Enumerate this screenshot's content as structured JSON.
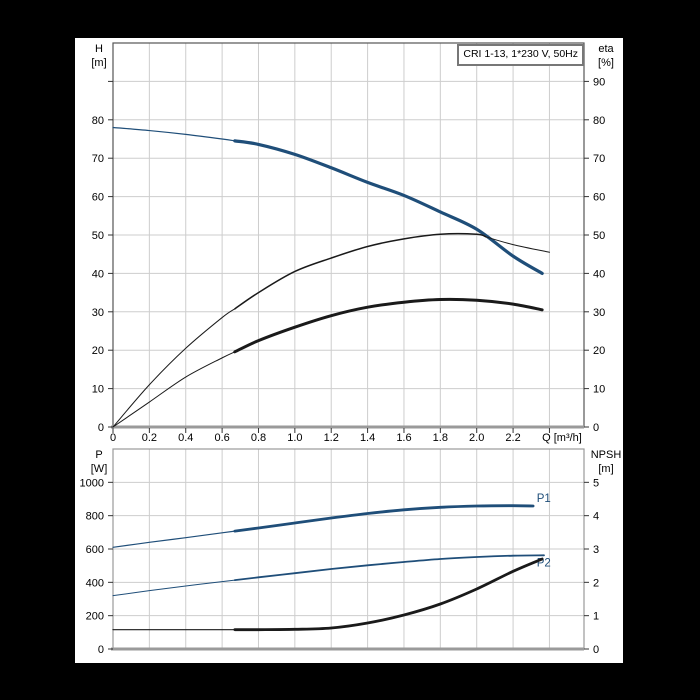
{
  "title_box": {
    "text": "CRI 1-13, 1*230 V, 50Hz"
  },
  "colors": {
    "page_bg": "#000000",
    "panel_bg": "#ffffff",
    "blue": "#1f4e79",
    "black": "#1a1a1a",
    "grid": "#cdcdcd",
    "frame": "#555555",
    "frame_light": "#999999",
    "baseline": "#9a9a9a",
    "tick": "#333333",
    "text": "#000000"
  },
  "chart_data": [
    {
      "id": "head-efficiency-chart",
      "type": "line",
      "x": {
        "label": "Q [m³/h]",
        "min": 0,
        "max": 2.59,
        "grid_step": 0.2,
        "tick_labels": [
          "0",
          "0.2",
          "0.4",
          "0.6",
          "0.8",
          "1.0",
          "1.2",
          "1.4",
          "1.6",
          "1.8",
          "2.0",
          "2.2"
        ],
        "show_tick_labels": true
      },
      "y_left": {
        "title": [
          "H",
          "[m]"
        ],
        "min": 0,
        "max": 100,
        "grid_step": 10,
        "labels": [
          "0",
          "10",
          "20",
          "30",
          "40",
          "50",
          "60",
          "70",
          "80"
        ]
      },
      "y_right": {
        "title": [
          "eta",
          "[%]"
        ],
        "min": 0,
        "max": 100,
        "grid_step": 10,
        "labels": [
          "0",
          "10",
          "20",
          "30",
          "40",
          "50",
          "60",
          "70",
          "80",
          "90"
        ]
      },
      "series": [
        {
          "name": "H-Q curve",
          "axis": "left",
          "color": "blue",
          "splits": [
            0.67
          ],
          "widths": [
            1.2,
            3.2
          ],
          "points": [
            [
              0,
              78
            ],
            [
              0.2,
              77.2
            ],
            [
              0.4,
              76.2
            ],
            [
              0.6,
              75
            ],
            [
              0.8,
              73.6
            ],
            [
              1.0,
              71
            ],
            [
              1.2,
              67.5
            ],
            [
              1.4,
              63.7
            ],
            [
              1.6,
              60.3
            ],
            [
              1.8,
              56
            ],
            [
              2.0,
              51.5
            ],
            [
              2.2,
              44.5
            ],
            [
              2.36,
              40
            ]
          ]
        },
        {
          "name": "eta pump curve",
          "axis": "right",
          "color": "black",
          "splits": [
            0.67,
            2.05
          ],
          "widths": [
            1,
            1.5,
            1
          ],
          "points": [
            [
              0,
              0
            ],
            [
              0.2,
              11
            ],
            [
              0.4,
              20.5
            ],
            [
              0.6,
              28.5
            ],
            [
              0.8,
              35
            ],
            [
              1.0,
              40.5
            ],
            [
              1.2,
              44
            ],
            [
              1.4,
              47
            ],
            [
              1.6,
              49
            ],
            [
              1.8,
              50.2
            ],
            [
              2.0,
              50.2
            ],
            [
              2.2,
              47.5
            ],
            [
              2.4,
              45.5
            ]
          ]
        },
        {
          "name": "eta pump plus motor curve",
          "axis": "right",
          "color": "black",
          "splits": [
            0.67
          ],
          "widths": [
            1,
            3
          ],
          "points": [
            [
              0,
              0
            ],
            [
              0.2,
              6.5
            ],
            [
              0.4,
              13
            ],
            [
              0.6,
              18
            ],
            [
              0.8,
              22.5
            ],
            [
              1.0,
              26
            ],
            [
              1.2,
              29
            ],
            [
              1.4,
              31.2
            ],
            [
              1.6,
              32.5
            ],
            [
              1.8,
              33.2
            ],
            [
              2.0,
              33
            ],
            [
              2.2,
              32
            ],
            [
              2.36,
              30.5
            ]
          ]
        }
      ]
    },
    {
      "id": "power-npsh-chart",
      "type": "line",
      "x": {
        "label": "",
        "min": 0,
        "max": 2.59,
        "grid_step": 0.2,
        "tick_labels": [],
        "show_tick_labels": false
      },
      "y_left": {
        "title": [
          "P",
          "[W]"
        ],
        "min": 0,
        "max": 1200,
        "grid_step": 200,
        "labels": [
          "0",
          "200",
          "400",
          "600",
          "800",
          "1000"
        ]
      },
      "y_right": {
        "title": [
          "NPSH",
          "[m]"
        ],
        "min": 0,
        "max": 6,
        "grid_step": 1,
        "labels": [
          "0",
          "1",
          "2",
          "3",
          "4",
          "5"
        ]
      },
      "series": [
        {
          "name": "P1 power curve",
          "axis": "left",
          "color": "blue",
          "splits": [
            0.67
          ],
          "widths": [
            1.2,
            2.8
          ],
          "label": {
            "text": "P1",
            "q": 2.33,
            "v": 905
          },
          "points": [
            [
              0,
              610
            ],
            [
              0.2,
              640
            ],
            [
              0.4,
              668
            ],
            [
              0.6,
              697
            ],
            [
              0.8,
              726
            ],
            [
              1.0,
              756
            ],
            [
              1.2,
              786
            ],
            [
              1.4,
              813
            ],
            [
              1.6,
              835
            ],
            [
              1.8,
              850
            ],
            [
              2.0,
              858
            ],
            [
              2.2,
              860
            ],
            [
              2.31,
              858
            ]
          ]
        },
        {
          "name": "P2 power curve",
          "axis": "left",
          "color": "blue",
          "splits": [
            0.67
          ],
          "widths": [
            1,
            1.8
          ],
          "label": {
            "text": "P2",
            "q": 2.33,
            "v": 520
          },
          "points": [
            [
              0,
              320
            ],
            [
              0.2,
              350
            ],
            [
              0.4,
              378
            ],
            [
              0.6,
              404
            ],
            [
              0.8,
              430
            ],
            [
              1.0,
              455
            ],
            [
              1.2,
              480
            ],
            [
              1.4,
              502
            ],
            [
              1.6,
              522
            ],
            [
              1.8,
              540
            ],
            [
              2.0,
              552
            ],
            [
              2.2,
              560
            ],
            [
              2.37,
              562
            ]
          ]
        },
        {
          "name": "NPSH curve",
          "axis": "right",
          "color": "black",
          "splits": [
            0.67
          ],
          "widths": [
            1.2,
            2.8
          ],
          "points": [
            [
              0,
              0.58
            ],
            [
              0.2,
              0.58
            ],
            [
              0.4,
              0.58
            ],
            [
              0.6,
              0.58
            ],
            [
              0.8,
              0.58
            ],
            [
              1.0,
              0.59
            ],
            [
              1.2,
              0.63
            ],
            [
              1.4,
              0.78
            ],
            [
              1.6,
              1.02
            ],
            [
              1.8,
              1.35
            ],
            [
              2.0,
              1.8
            ],
            [
              2.2,
              2.33
            ],
            [
              2.36,
              2.7
            ]
          ]
        }
      ]
    }
  ]
}
